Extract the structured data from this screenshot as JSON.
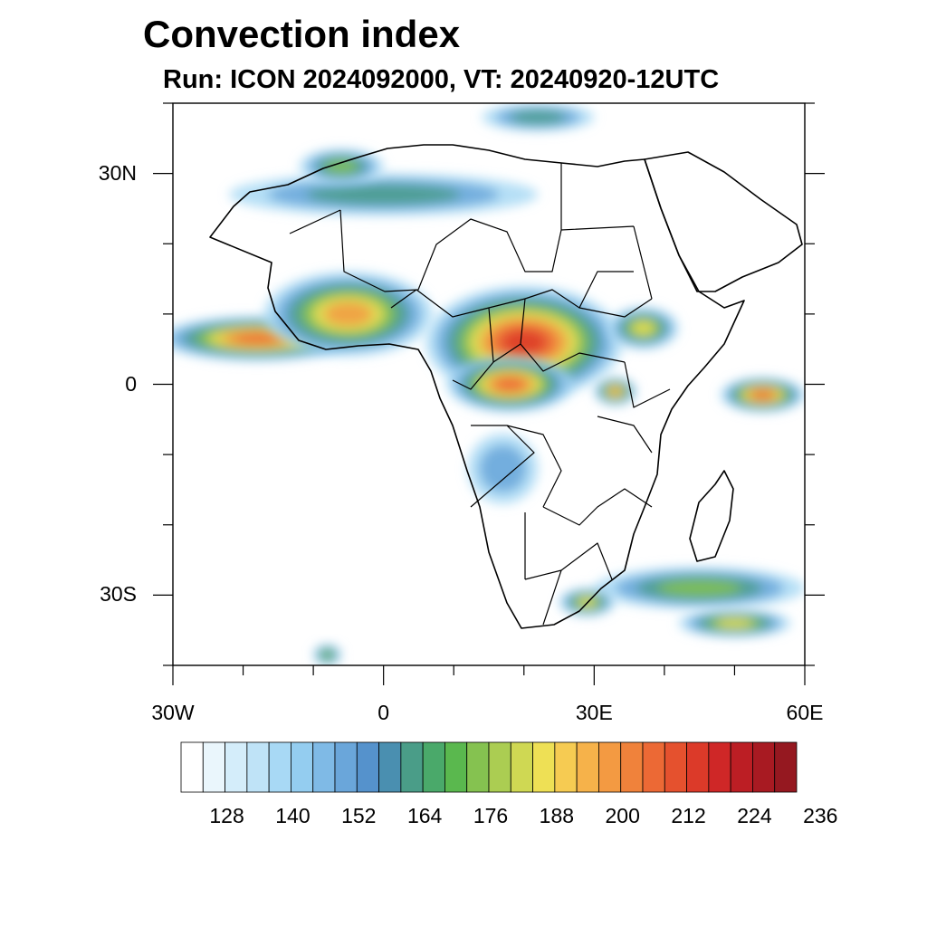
{
  "title": "Convection index",
  "subtitle": "Run: ICON 2024092000,  VT: 20240920-12UTC",
  "map": {
    "projection": "cylindrical-equidistant",
    "lon_range": [
      -30,
      60
    ],
    "lat_range": [
      -40,
      40
    ],
    "lat_labels": [
      {
        "lat": 30,
        "text": "30N"
      },
      {
        "lat": 0,
        "text": "0"
      },
      {
        "lat": -30,
        "text": "30S"
      }
    ],
    "lon_labels": [
      {
        "lon": -30,
        "text": "30W"
      },
      {
        "lon": 0,
        "text": "0"
      },
      {
        "lon": 30,
        "text": "30E"
      },
      {
        "lon": 60,
        "text": "60E"
      }
    ],
    "coastline_color": "#000000",
    "fields": [
      {
        "name": "atlantic-itcz-band",
        "lon": -18,
        "lat": 6.5,
        "rlon": 14,
        "rlat": 3.2,
        "level": 0.85
      },
      {
        "name": "west-africa-convection",
        "lon": -5,
        "lat": 10,
        "rlon": 12,
        "rlat": 6,
        "level": 0.8
      },
      {
        "name": "central-africa-convection",
        "lon": 20,
        "lat": 6,
        "rlon": 14,
        "rlat": 8,
        "level": 1.0
      },
      {
        "name": "congo-basin-convection",
        "lon": 18,
        "lat": 0,
        "rlon": 9,
        "rlat": 4,
        "level": 0.85
      },
      {
        "name": "east-africa-highlands",
        "lon": 37,
        "lat": 8,
        "rlon": 5,
        "rlat": 3,
        "level": 0.6
      },
      {
        "name": "lake-victoria",
        "lon": 33,
        "lat": -1,
        "rlon": 3,
        "rlat": 2,
        "level": 0.75
      },
      {
        "name": "indian-ocean-cell",
        "lon": 54,
        "lat": -1.5,
        "rlon": 6,
        "rlat": 2.5,
        "level": 0.85
      },
      {
        "name": "sahara-band",
        "lon": 0,
        "lat": 27,
        "rlon": 22,
        "rlat": 3,
        "level": 0.4
      },
      {
        "name": "mozambique-channel-band",
        "lon": 45,
        "lat": -29,
        "rlon": 15,
        "rlat": 3,
        "level": 0.55
      },
      {
        "name": "south-africa-east",
        "lon": 29,
        "lat": -31,
        "rlon": 4,
        "rlat": 2,
        "level": 0.6
      },
      {
        "name": "south-atlantic-streak",
        "lon": -8,
        "lat": -38.5,
        "rlon": 2,
        "rlat": 1.5,
        "level": 0.55
      },
      {
        "name": "angola-sparse",
        "lon": 17,
        "lat": -12,
        "rlon": 5,
        "rlat": 5,
        "level": 0.25
      },
      {
        "name": "maghreb",
        "lon": -6,
        "lat": 31,
        "rlon": 6,
        "rlat": 2.5,
        "level": 0.55
      },
      {
        "name": "mediterranean",
        "lon": 22,
        "lat": 38,
        "rlon": 8,
        "rlat": 2,
        "level": 0.35
      },
      {
        "name": "south-madagascar-band",
        "lon": 50,
        "lat": -34,
        "rlon": 8,
        "rlat": 2,
        "level": 0.6
      }
    ]
  },
  "colorbar": {
    "colors": [
      "#ffffff",
      "#eaf6fc",
      "#d4edfa",
      "#bfe3f7",
      "#a8d9f5",
      "#94cdf0",
      "#7fbae6",
      "#6aa6da",
      "#5592cc",
      "#4a8fb0",
      "#4a9d88",
      "#4aa96a",
      "#5ab84e",
      "#85c250",
      "#abcd52",
      "#cfd853",
      "#eee055",
      "#f6cb52",
      "#f6b24a",
      "#f39a42",
      "#f0823b",
      "#ec6935",
      "#e5512e",
      "#dc3a29",
      "#cf2727",
      "#bc1e24",
      "#a81a22",
      "#951820"
    ],
    "tick_labels": [
      "128",
      "140",
      "152",
      "164",
      "176",
      "188",
      "200",
      "212",
      "224",
      "236"
    ],
    "tick_positions_box": [
      2,
      5,
      8,
      11,
      14,
      17,
      20,
      23,
      26,
      29
    ]
  }
}
